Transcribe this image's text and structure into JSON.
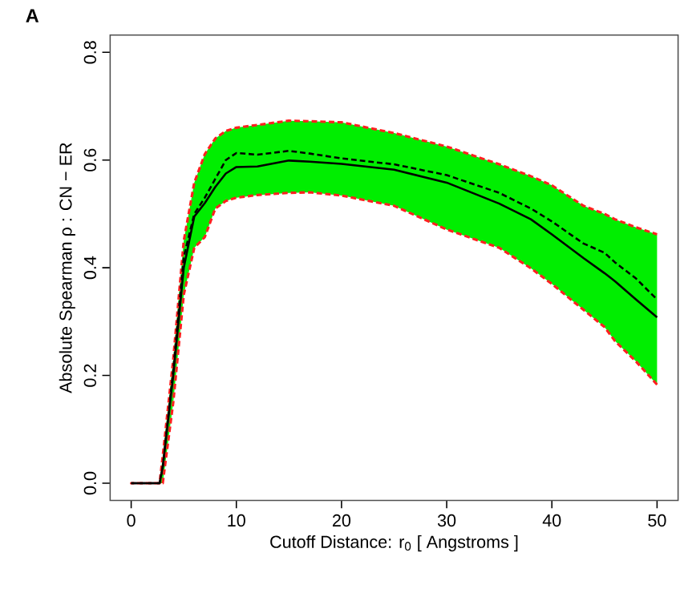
{
  "chart_data": {
    "type": "line",
    "xlabel": "Cutoff Distance: r$_{0}$ [ Angstroms ]",
    "ylabel": "Absolute Spearman ρ : CN − ER",
    "annotations": [
      "A"
    ],
    "x": [
      0,
      1,
      2,
      2.7,
      3,
      4,
      5,
      6,
      7,
      8,
      9,
      10,
      12,
      15,
      17,
      20,
      25,
      30,
      35,
      38,
      40,
      43,
      45,
      46,
      48,
      50
    ],
    "series": [
      {
        "color": "#000000",
        "line_style": "solid",
        "values": [
          0,
          0,
          0,
          0,
          0.03,
          0.2,
          0.4,
          0.495,
          0.52,
          0.55,
          0.575,
          0.587,
          0.588,
          0.599,
          0.597,
          0.593,
          0.582,
          0.558,
          0.519,
          0.49,
          0.462,
          0.418,
          0.39,
          0.375,
          0.341,
          0.308
        ],
        "upper": [
          0,
          0,
          0,
          0,
          0.05,
          0.23,
          0.45,
          0.558,
          0.611,
          0.64,
          0.654,
          0.66,
          0.665,
          0.673,
          0.672,
          0.67,
          0.65,
          0.625,
          0.592,
          0.57,
          0.553,
          0.515,
          0.5,
          0.49,
          0.475,
          0.462
        ],
        "lower": [
          0,
          0,
          0,
          0,
          0,
          0.15,
          0.35,
          0.437,
          0.457,
          0.51,
          0.524,
          0.53,
          0.535,
          0.539,
          0.54,
          0.534,
          0.515,
          0.471,
          0.437,
          0.399,
          0.37,
          0.322,
          0.29,
          0.264,
          0.226,
          0.183
        ]
      },
      {
        "color": "#000000",
        "line_style": "dashed",
        "values": [
          0,
          0,
          0,
          0,
          0.03,
          0.21,
          0.42,
          0.5,
          0.53,
          0.565,
          0.6,
          0.613,
          0.61,
          0.617,
          0.612,
          0.603,
          0.592,
          0.572,
          0.539,
          0.51,
          0.486,
          0.445,
          0.428,
          0.41,
          0.38,
          0.341
        ]
      }
    ],
    "xlim": [
      -2,
      52
    ],
    "ylim": [
      -0.032,
      0.832
    ],
    "xticks": [
      0,
      10,
      20,
      30,
      40,
      50
    ],
    "yticks": [
      {
        "value": 0,
        "label": "0.0"
      },
      {
        "value": 0.2,
        "label": "0.2"
      },
      {
        "value": 0.4,
        "label": "0.4"
      },
      {
        "value": 0.6,
        "label": "0.6"
      },
      {
        "value": 0.8,
        "label": "0.8"
      }
    ],
    "grid": false,
    "marker": "none"
  }
}
